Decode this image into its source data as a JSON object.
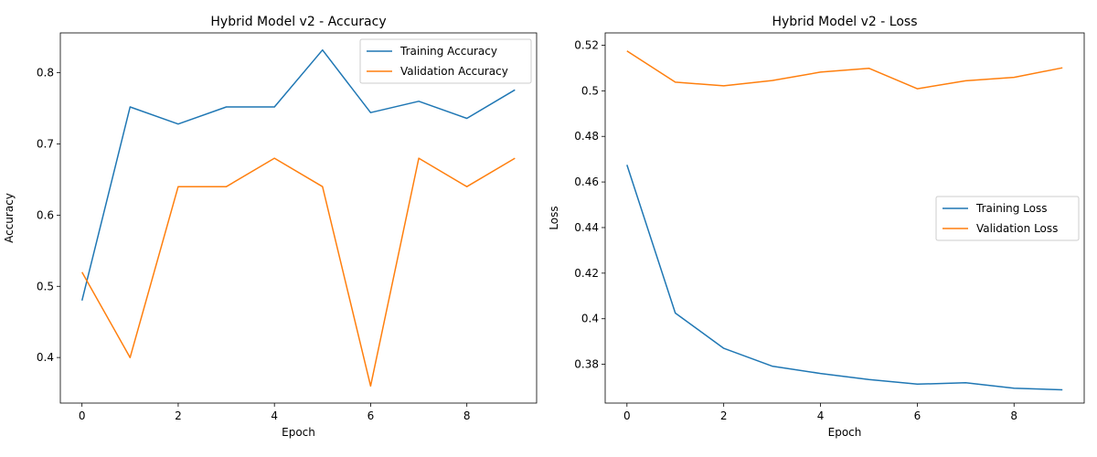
{
  "chart_data": [
    {
      "type": "line",
      "title": "Hybrid Model v2 - Accuracy",
      "xlabel": "Epoch",
      "ylabel": "Accuracy",
      "x": [
        0,
        1,
        2,
        3,
        4,
        5,
        6,
        7,
        8,
        9
      ],
      "xlim": [
        -0.45,
        9.45
      ],
      "ylim": [
        0.336,
        0.856
      ],
      "xticks": [
        0,
        2,
        4,
        6,
        8
      ],
      "yticks": [
        0.4,
        0.5,
        0.6,
        0.7,
        0.8
      ],
      "grid": false,
      "legend_position": "top-right",
      "series": [
        {
          "name": "Training Accuracy",
          "color": "#1f77b4",
          "values": [
            0.48,
            0.752,
            0.728,
            0.752,
            0.752,
            0.832,
            0.744,
            0.76,
            0.736,
            0.776
          ]
        },
        {
          "name": "Validation Accuracy",
          "color": "#ff7f0e",
          "values": [
            0.52,
            0.4,
            0.64,
            0.64,
            0.68,
            0.64,
            0.36,
            0.68,
            0.64,
            0.68
          ]
        }
      ]
    },
    {
      "type": "line",
      "title": "Hybrid Model v2 - Loss",
      "xlabel": "Epoch",
      "ylabel": "Loss",
      "x": [
        0,
        1,
        2,
        3,
        4,
        5,
        6,
        7,
        8,
        9
      ],
      "xlim": [
        -0.45,
        9.45
      ],
      "ylim": [
        0.363,
        0.5254
      ],
      "xticks": [
        0,
        2,
        4,
        6,
        8
      ],
      "yticks": [
        0.38,
        0.4,
        0.42,
        0.44,
        0.46,
        0.48,
        0.5,
        0.52
      ],
      "grid": false,
      "legend_position": "center-right",
      "series": [
        {
          "name": "Training Loss",
          "color": "#1f77b4",
          "values": [
            0.4675,
            0.4025,
            0.387,
            0.3792,
            0.376,
            0.3733,
            0.3713,
            0.3719,
            0.3695,
            0.3688
          ]
        },
        {
          "name": "Validation Loss",
          "color": "#ff7f0e",
          "values": [
            0.5175,
            0.5038,
            0.5022,
            0.5045,
            0.5082,
            0.5099,
            0.5009,
            0.5044,
            0.5059,
            0.5101
          ]
        }
      ]
    }
  ]
}
